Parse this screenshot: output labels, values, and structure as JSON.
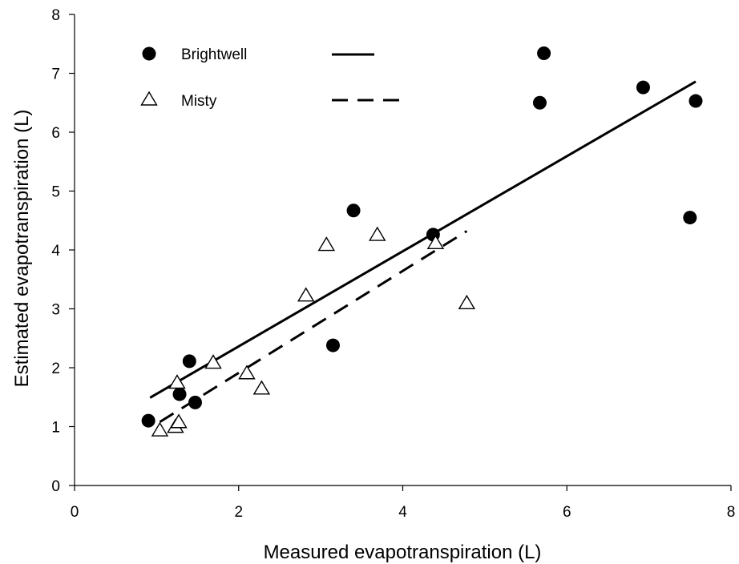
{
  "chart_data": {
    "type": "scatter",
    "xlabel": "Measured evapotranspiration (L)",
    "ylabel": "Estimated evapotranspiration  (L)",
    "xlim": [
      0,
      8
    ],
    "ylim": [
      0,
      8
    ],
    "xticks": [
      0,
      2,
      4,
      6,
      8
    ],
    "yticks": [
      0,
      1,
      2,
      3,
      4,
      5,
      6,
      7,
      8
    ],
    "grid": false,
    "legend_position": "top-left",
    "series": [
      {
        "name": "Brightwell",
        "marker": "filled-circle",
        "line_style": "solid",
        "color": "#000000",
        "x": [
          0.9,
          1.28,
          1.4,
          1.47,
          3.15,
          3.4,
          4.37,
          5.67,
          5.72,
          6.93,
          7.5,
          7.57
        ],
        "y": [
          1.1,
          1.55,
          2.11,
          1.41,
          2.38,
          4.67,
          4.26,
          6.5,
          7.34,
          6.76,
          4.55,
          6.53
        ],
        "fit": {
          "x": [
            0.92,
            7.57
          ],
          "y": [
            1.49,
            6.86
          ]
        }
      },
      {
        "name": "Misty",
        "marker": "open-triangle",
        "line_style": "dashed",
        "color": "#000000",
        "x": [
          1.04,
          1.23,
          1.27,
          1.25,
          1.69,
          2.1,
          2.28,
          2.82,
          3.07,
          3.69,
          4.4,
          4.78
        ],
        "y": [
          0.93,
          0.99,
          1.07,
          1.74,
          2.08,
          1.9,
          1.64,
          3.22,
          4.08,
          4.25,
          4.11,
          3.09
        ],
        "fit": {
          "x": [
            1.04,
            4.78
          ],
          "y": [
            1.08,
            4.32
          ]
        }
      }
    ]
  }
}
